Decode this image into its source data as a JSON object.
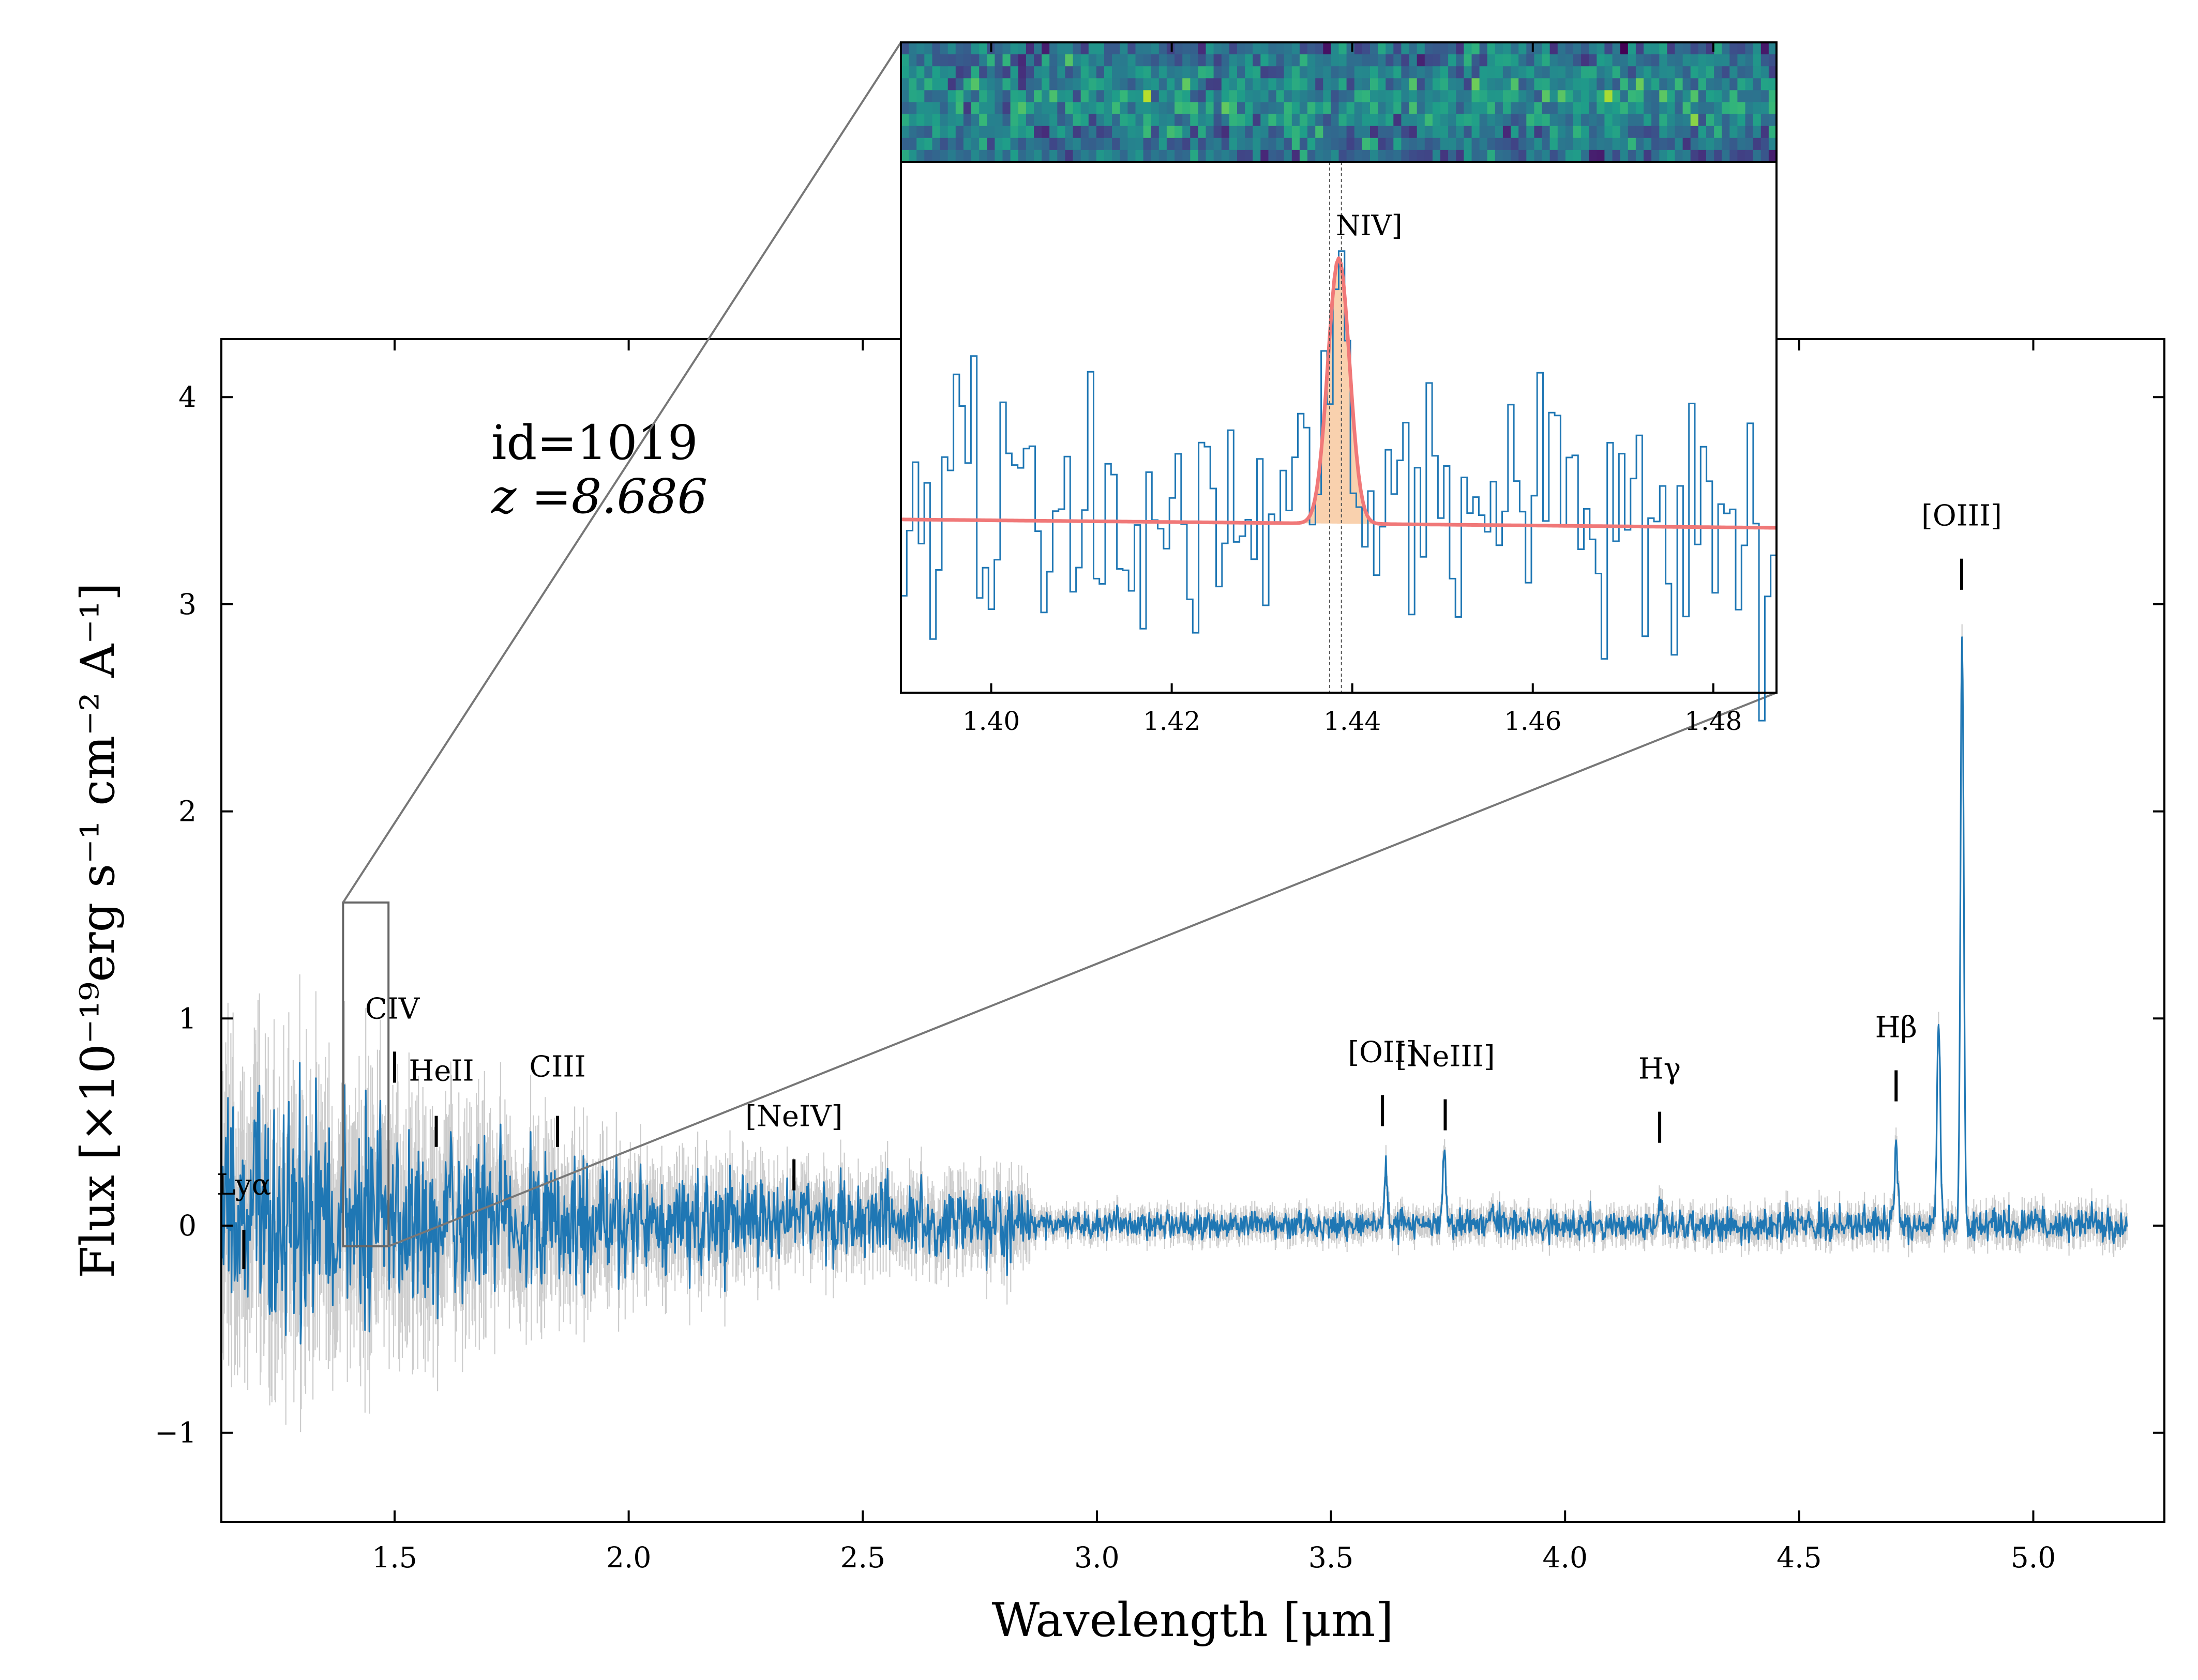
{
  "chart_data": {
    "type": "line",
    "title": "",
    "xlabel": "Wavelength [μm]",
    "ylabel": "Flux [×10⁻¹⁹erg s⁻¹ cm⁻² A⁻¹]",
    "xlim": [
      1.13,
      5.28
    ],
    "ylim": [
      -1.43,
      4.28
    ],
    "xticks": [
      1.5,
      2.0,
      2.5,
      3.0,
      3.5,
      4.0,
      4.5,
      5.0
    ],
    "xtick_labels": [
      "1.5",
      "2.0",
      "2.5",
      "3.0",
      "3.5",
      "4.0",
      "4.5",
      "5.0"
    ],
    "yticks": [
      -1,
      0,
      1,
      2,
      3,
      4
    ],
    "ytick_labels": [
      "−1",
      "0",
      "1",
      "2",
      "3",
      "4"
    ],
    "annotation": {
      "id_text": "id=1019",
      "z_text": "z =8.686"
    },
    "series": [
      {
        "name": "spectrum",
        "color": "#1f77b4",
        "error_color": "#c8c8c8",
        "x_start": 1.13,
        "x_end": 5.2,
        "noise_envelope": [
          [
            1.13,
            0.42
          ],
          [
            1.5,
            0.35
          ],
          [
            2.0,
            0.18
          ],
          [
            2.5,
            0.12
          ],
          [
            2.85,
            0.13
          ],
          [
            2.87,
            0.045
          ],
          [
            4.0,
            0.05
          ],
          [
            5.2,
            0.06
          ]
        ],
        "peaks": [
          {
            "x": 3.617,
            "flux": 0.28
          },
          {
            "x": 3.742,
            "flux": 0.33
          },
          {
            "x": 3.845,
            "flux": 0.08
          },
          {
            "x": 4.203,
            "flux": 0.1
          },
          {
            "x": 4.707,
            "flux": 0.37
          },
          {
            "x": 4.798,
            "flux": 0.98
          },
          {
            "x": 4.848,
            "flux": 2.85
          }
        ]
      }
    ],
    "emission_lines": [
      {
        "label": "Lyα",
        "x": 1.178,
        "tick_y": [
          -0.21,
          -0.02
        ],
        "label_x": 1.178,
        "label_y": 0.15
      },
      {
        "label": "CIV",
        "x": 1.5,
        "tick_y": [
          0.69,
          0.84
        ],
        "label_x": 1.495,
        "label_y": 1.0
      },
      {
        "label": "HeII",
        "x": 1.589,
        "tick_y": [
          0.38,
          0.53
        ],
        "label_x": 1.6,
        "label_y": 0.7
      },
      {
        "label": "CIII",
        "x": 1.848,
        "tick_y": [
          0.38,
          0.53
        ],
        "label_x": 1.848,
        "label_y": 0.72
      },
      {
        "label": "[NeIV]",
        "x": 2.353,
        "tick_y": [
          0.17,
          0.32
        ],
        "label_x": 2.353,
        "label_y": 0.48
      },
      {
        "label": "[OII]",
        "x": 3.61,
        "tick_y": [
          0.48,
          0.63
        ],
        "label_x": 3.61,
        "label_y": 0.79
      },
      {
        "label": "[NeIII]",
        "x": 3.744,
        "tick_y": [
          0.46,
          0.61
        ],
        "label_x": 3.744,
        "label_y": 0.77
      },
      {
        "label": "Hγ",
        "x": 4.202,
        "tick_y": [
          0.4,
          0.55
        ],
        "label_x": 4.202,
        "label_y": 0.71
      },
      {
        "label": "Hβ",
        "x": 4.707,
        "tick_y": [
          0.6,
          0.75
        ],
        "label_x": 4.707,
        "label_y": 0.91
      },
      {
        "label": "[OIII]",
        "x": 4.847,
        "tick_y": [
          3.07,
          3.22
        ],
        "label_x": 4.847,
        "label_y": 3.38
      }
    ],
    "zoom_box": {
      "x": [
        1.39,
        1.487
      ],
      "y": [
        -0.1,
        1.56
      ]
    },
    "inset": {
      "type": "step",
      "xlim": [
        1.39,
        1.487
      ],
      "xticks": [
        1.4,
        1.42,
        1.44,
        1.46,
        1.48
      ],
      "xtick_labels": [
        "1.40",
        "1.42",
        "1.44",
        "1.46",
        "1.48"
      ],
      "ylim": [
        -0.6,
        1.3
      ],
      "line_label": "NIV]",
      "line_x": [
        1.4375,
        1.4388
      ],
      "fit": {
        "center": 1.4385,
        "sigma": 0.0012,
        "amplitude": 0.95,
        "continuum_start": 0.02,
        "continuum_end": -0.01,
        "color": "#f07878",
        "fill": "#f8c9a0"
      },
      "colormap": "viridis"
    }
  }
}
